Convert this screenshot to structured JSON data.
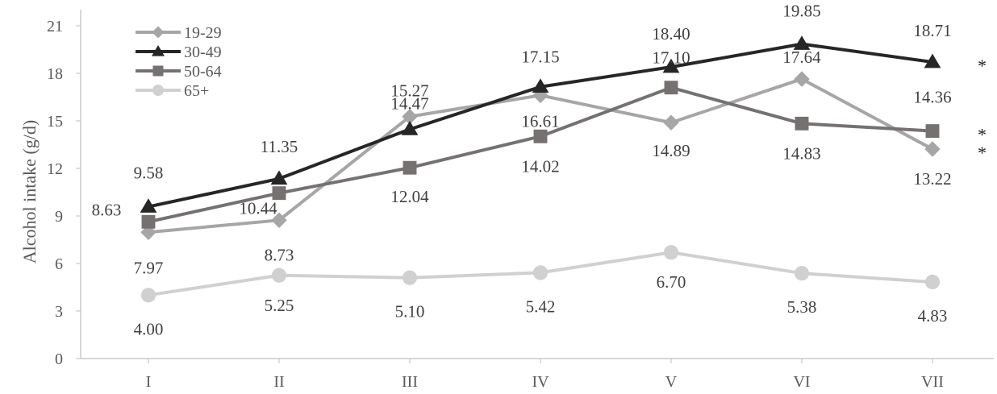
{
  "chart_data": {
    "type": "line",
    "title": "",
    "xlabel": "",
    "ylabel": "Alcohol intake (g/d)",
    "categories": [
      "I",
      "II",
      "III",
      "IV",
      "V",
      "VI",
      "VII"
    ],
    "ylim": [
      0,
      21
    ],
    "yticks": [
      "0",
      "3",
      "6",
      "9",
      "12",
      "15",
      "18",
      "21"
    ],
    "grid": false,
    "legend_position": "top-left",
    "series": [
      {
        "name": "19-29",
        "marker": "diamond",
        "color": "#a6a6a6",
        "values": [
          7.97,
          8.73,
          15.27,
          16.61,
          14.89,
          17.64,
          13.22
        ],
        "labels": [
          "7.97",
          "8.73",
          "15.27",
          "16.61",
          "14.89",
          "17.64",
          "13.22"
        ],
        "significance": "*"
      },
      {
        "name": "30-49",
        "marker": "triangle",
        "color": "#262626",
        "values": [
          9.58,
          11.35,
          14.47,
          17.15,
          18.4,
          19.85,
          18.71
        ],
        "labels": [
          "9.58",
          "11.35",
          "14.47",
          "17.15",
          "18.40",
          "19.85",
          "18.71"
        ],
        "significance": "*"
      },
      {
        "name": "50-64",
        "marker": "square",
        "color": "#767171",
        "values": [
          8.63,
          10.44,
          12.04,
          14.02,
          17.1,
          14.83,
          14.36
        ],
        "labels": [
          "8.63",
          "10.44",
          "12.04",
          "14.02",
          "17.10",
          "14.83",
          "14.36"
        ],
        "significance": "*"
      },
      {
        "name": "65+",
        "marker": "circle",
        "color": "#d0d0d0",
        "values": [
          4.0,
          5.25,
          5.1,
          5.42,
          6.7,
          5.38,
          4.83
        ],
        "labels": [
          "4.00",
          "5.25",
          "5.10",
          "5.42",
          "6.70",
          "5.38",
          "4.83"
        ],
        "significance": ""
      }
    ]
  }
}
